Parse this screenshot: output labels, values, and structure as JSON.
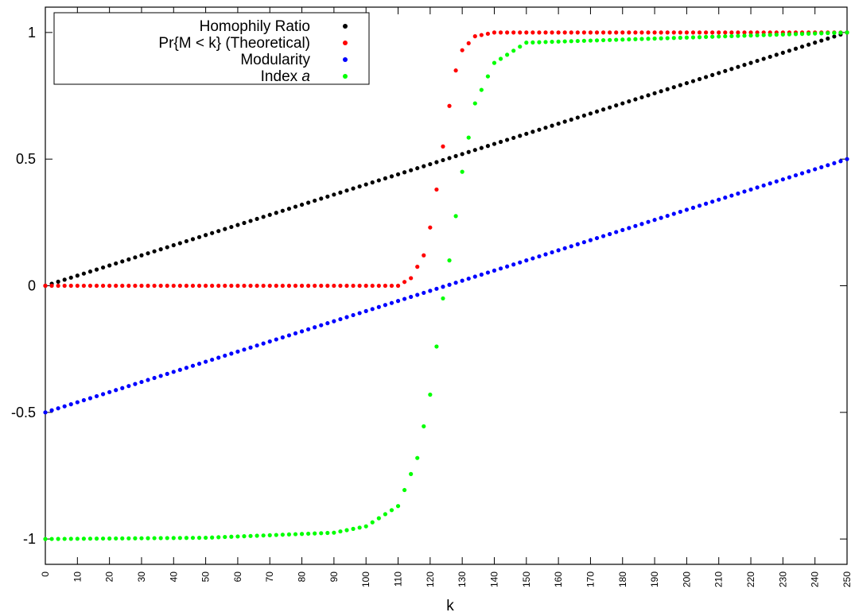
{
  "chart_data": {
    "type": "scatter",
    "xlabel": "k",
    "ylabel": "",
    "title": "",
    "xlim": [
      0,
      250
    ],
    "ylim": [
      -1.1,
      1.1
    ],
    "x_ticks": [
      0,
      10,
      20,
      30,
      40,
      50,
      60,
      70,
      80,
      90,
      100,
      110,
      120,
      130,
      140,
      150,
      160,
      170,
      180,
      190,
      200,
      210,
      220,
      230,
      240,
      250
    ],
    "y_ticks": [
      -1,
      -0.5,
      0,
      0.5,
      1
    ],
    "y_tick_labels": [
      "-1",
      "-0.5",
      "0",
      "0.5",
      "1"
    ],
    "grid": false,
    "legend_position": "top-left",
    "x_step": 2,
    "series": [
      {
        "name": "Homophily Ratio",
        "label_html": "Homophily Ratio",
        "color": "#000000",
        "formula_desc": "linear",
        "points_sample": [
          [
            0,
            0
          ],
          [
            50,
            0.2
          ],
          [
            100,
            0.4
          ],
          [
            150,
            0.6
          ],
          [
            200,
            0.8
          ],
          [
            250,
            1.0
          ]
        ]
      },
      {
        "name": "Pr{M < k} (Theoretical)",
        "color": "#ff0000",
        "points_sample": [
          [
            0,
            0
          ],
          [
            100,
            0
          ],
          [
            110,
            0.0
          ],
          [
            114,
            0.03
          ],
          [
            118,
            0.12
          ],
          [
            120,
            0.23
          ],
          [
            122,
            0.38
          ],
          [
            124,
            0.55
          ],
          [
            126,
            0.71
          ],
          [
            128,
            0.85
          ],
          [
            130,
            0.93
          ],
          [
            134,
            0.985
          ],
          [
            140,
            1.0
          ],
          [
            250,
            1.0
          ]
        ]
      },
      {
        "name": "Modularity",
        "color": "#0000ff",
        "points_sample": [
          [
            0,
            -0.5
          ],
          [
            50,
            -0.3
          ],
          [
            100,
            -0.1
          ],
          [
            150,
            0.1
          ],
          [
            200,
            0.3
          ],
          [
            250,
            0.5
          ]
        ]
      },
      {
        "name": "Index a",
        "label_prefix": "Index ",
        "label_italic": "a",
        "color": "#00ff00",
        "points_sample": [
          [
            0,
            -1.0
          ],
          [
            50,
            -0.995
          ],
          [
            90,
            -0.975
          ],
          [
            100,
            -0.95
          ],
          [
            110,
            -0.87
          ],
          [
            116,
            -0.68
          ],
          [
            120,
            -0.43
          ],
          [
            124,
            -0.05
          ],
          [
            126,
            0.1
          ],
          [
            130,
            0.45
          ],
          [
            134,
            0.72
          ],
          [
            140,
            0.88
          ],
          [
            150,
            0.96
          ],
          [
            250,
            1.0
          ]
        ]
      }
    ]
  }
}
